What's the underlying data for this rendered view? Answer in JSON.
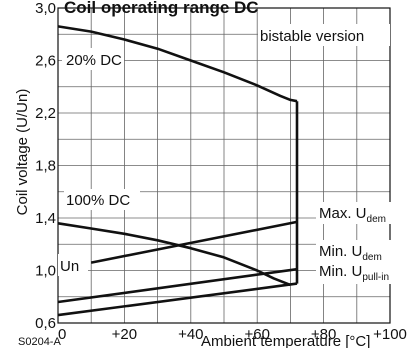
{
  "chart_data": {
    "type": "line",
    "title": "Coil operating range DC",
    "xlabel": "Ambient temperature [°C]",
    "ylabel": "Coil voltage (U/Un)",
    "xlim": [
      0,
      100
    ],
    "ylim": [
      0.6,
      3.0
    ],
    "x_ticks": [
      0,
      20,
      40,
      60,
      80,
      100
    ],
    "x_tick_labels": [
      "0",
      "+20",
      "+40",
      "+60",
      "+80",
      "+100"
    ],
    "y_ticks": [
      0.6,
      1.0,
      1.4,
      1.8,
      2.2,
      2.6,
      3.0
    ],
    "y_tick_labels": [
      "0,6",
      "1,0",
      "1,4",
      "1,8",
      "2,2",
      "2,6",
      "3,0"
    ],
    "grid": true,
    "code_label": "S0204-A",
    "annotations": {
      "bistable": "bistable version",
      "dc20": "20% DC",
      "dc100": "100% DC",
      "un": "Un",
      "max_udem_main": "Max. U",
      "max_udem_sub": "dem",
      "min_udem_main": "Min. U",
      "min_udem_sub": "dem",
      "min_upull_main": "Min. U",
      "min_upull_sub": "pull-in"
    },
    "series": [
      {
        "key": "dc20",
        "x": [
          0,
          10,
          20,
          30,
          40,
          50,
          60,
          67,
          70,
          72
        ],
        "y": [
          2.86,
          2.82,
          2.76,
          2.69,
          2.6,
          2.51,
          2.41,
          2.33,
          2.3,
          2.29
        ]
      },
      {
        "key": "dc20_vertical",
        "x": [
          72,
          72
        ],
        "y": [
          2.29,
          0.9
        ]
      },
      {
        "key": "dc100",
        "x": [
          0,
          10,
          20,
          30,
          40,
          50,
          60,
          65,
          70
        ],
        "y": [
          1.36,
          1.32,
          1.28,
          1.23,
          1.17,
          1.1,
          1.0,
          0.94,
          0.89
        ]
      },
      {
        "key": "max_udem",
        "x": [
          10,
          72
        ],
        "y": [
          1.06,
          1.37
        ]
      },
      {
        "key": "min_udem",
        "x": [
          0,
          72
        ],
        "y": [
          0.76,
          1.01
        ]
      },
      {
        "key": "min_upull_in",
        "x": [
          0,
          72
        ],
        "y": [
          0.66,
          0.9
        ]
      }
    ]
  }
}
